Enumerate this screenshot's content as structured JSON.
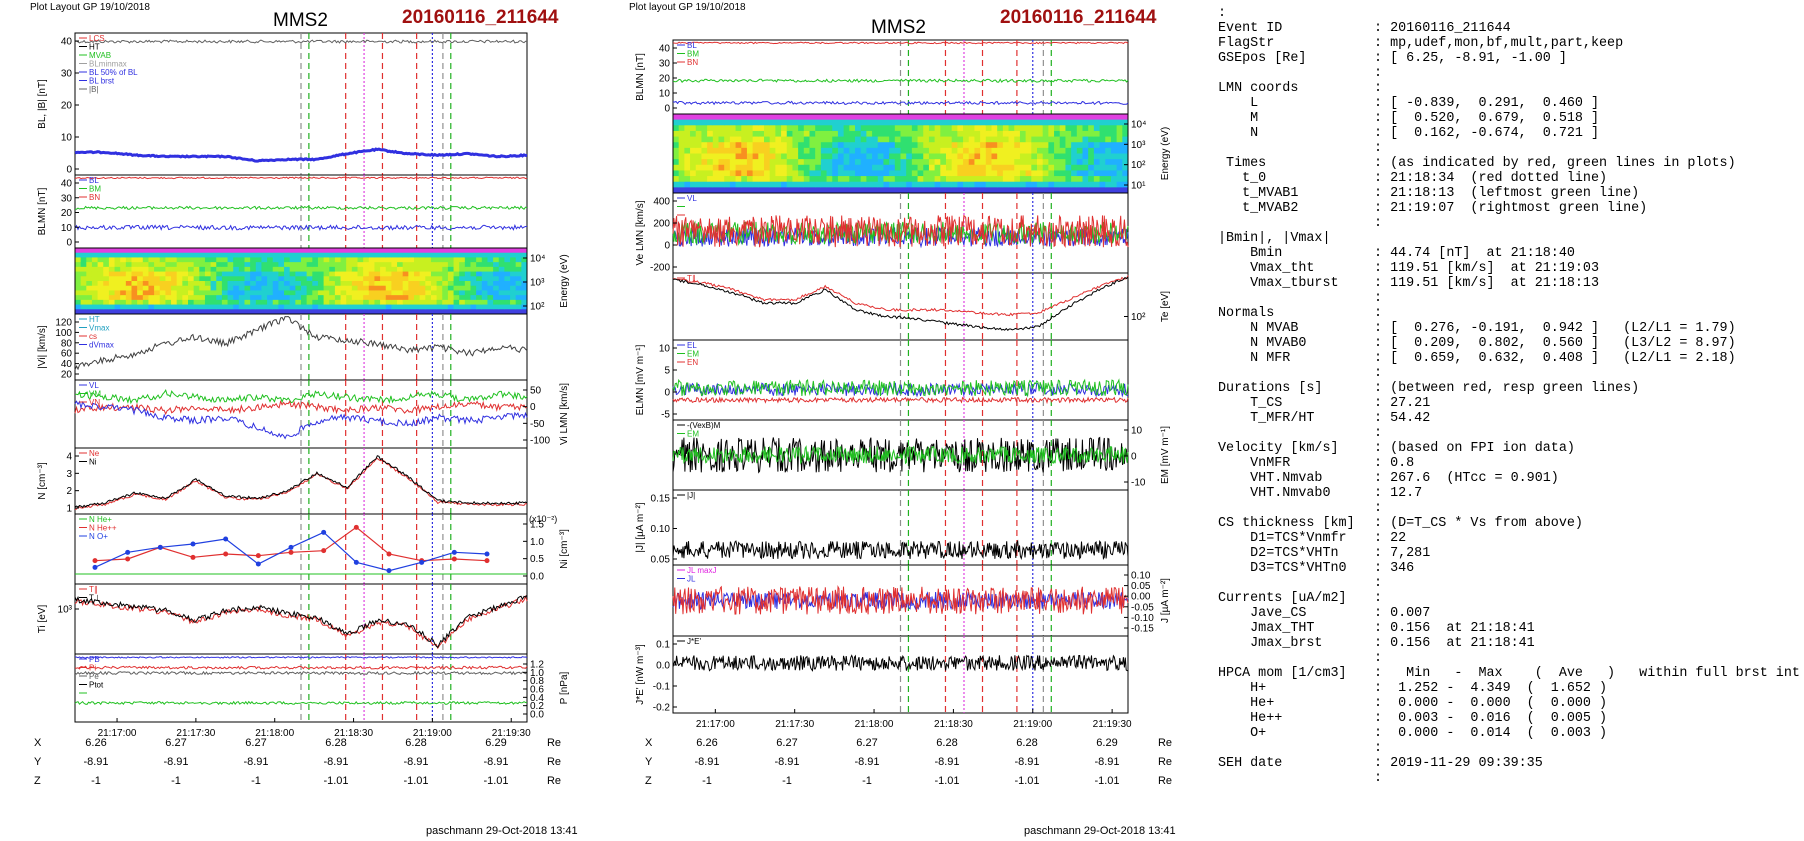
{
  "left": {
    "header": "Plot Layout GP 19/10/2018",
    "title": "MMS2",
    "event": "20160116_211644",
    "credit": "paschmann 29-Oct-2018 13:41",
    "time_ticks": [
      "21:17:00",
      "21:17:30",
      "21:18:00",
      "21:18:30",
      "21:19:00",
      "21:19:30"
    ],
    "pos_rows": [
      {
        "label": "X",
        "values": [
          "6.26",
          "6.27",
          "6.27",
          "6.28",
          "6.28",
          "6.29"
        ],
        "unit": "Re"
      },
      {
        "label": "Y",
        "values": [
          "-8.91",
          "-8.91",
          "-8.91",
          "-8.91",
          "-8.91",
          "-8.91"
        ],
        "unit": "Re"
      },
      {
        "label": "Z",
        "values": [
          "-1",
          "-1",
          "-1",
          "-1.01",
          "-1.01",
          "-1.01"
        ],
        "unit": "Re"
      }
    ],
    "panels": [
      {
        "ylabel": "B_L, |B| [nT]",
        "ticks": [
          "40",
          "30",
          "20",
          "10",
          "0"
        ],
        "legend": [
          {
            "t": "L_CS",
            "c": "#e03030"
          },
          {
            "t": "HT",
            "c": "#000000"
          },
          {
            "t": "MVAB",
            "c": "#20c020"
          },
          {
            "t": "BLminmax",
            "c": "#a0a0a0"
          },
          {
            "t": "BL 50% of BL",
            "c": "#3030e0"
          },
          {
            "t": "BL brst",
            "c": "#3030e0"
          },
          {
            "t": "|B|",
            "c": "#606060"
          }
        ]
      },
      {
        "ylabel": "B_LMN [nT]",
        "ticks": [
          "40",
          "30",
          "20",
          "10",
          "0"
        ],
        "legend": [
          {
            "t": "B_L",
            "c": "#3030e0"
          },
          {
            "t": "B_M",
            "c": "#20c020"
          },
          {
            "t": "B_N",
            "c": "#e03030"
          }
        ]
      },
      {
        "ylabel": "",
        "rlabel": "Energy (eV)",
        "rticks": [
          "10⁴",
          "10³",
          "10²"
        ]
      },
      {
        "ylabel": "|V_i| [km/s]",
        "ticks": [
          "120",
          "100",
          "80",
          "60",
          "40",
          "20"
        ],
        "legend": [
          {
            "t": "HT",
            "c": "#20a0c0"
          },
          {
            "t": "Vmax",
            "c": "#20a0c0"
          },
          {
            "t": "cs",
            "c": "#e03030"
          },
          {
            "t": "dVmax",
            "c": "#3030e0"
          }
        ]
      },
      {
        "ylabel": "",
        "rlabel": "V_i LMN [km/s]",
        "rticks": [
          "50",
          "0",
          "-50",
          "-100"
        ],
        "legend": [
          {
            "t": "V_L",
            "c": "#3030e0"
          },
          {
            "t": "V_M",
            "c": "#20c020"
          },
          {
            "t": "V_N",
            "c": "#e03030"
          }
        ]
      },
      {
        "ylabel": "N [cm⁻³]",
        "ticks": [
          "4",
          "3",
          "2",
          "1"
        ],
        "legend": [
          {
            "t": "Ne",
            "c": "#e03030"
          },
          {
            "t": "Ni",
            "c": "#000000"
          }
        ]
      },
      {
        "ylabel": "",
        "rlabel": "N_i [cm⁻³]",
        "rnote": "(x10⁻²)",
        "rticks": [
          "1.5",
          "1.0",
          "0.5",
          "0.0"
        ],
        "legend": [
          {
            "t": "N He+",
            "c": "#20c020"
          },
          {
            "t": "N He++",
            "c": "#e03030"
          },
          {
            "t": "N O+",
            "c": "#2040e0"
          }
        ]
      },
      {
        "ylabel": "T_i [eV]",
        "ticks": [
          "10³"
        ],
        "legend": [
          {
            "t": "T_∥",
            "c": "#e03030"
          },
          {
            "t": "T_⊥",
            "c": "#000000"
          }
        ]
      },
      {
        "ylabel": "",
        "rlabel": "P [nPa]",
        "rticks": [
          "1.2",
          "1.0",
          "0.8",
          "0.6",
          "0.4",
          "0.2",
          "0.0"
        ],
        "legend": [
          {
            "t": "P_B",
            "c": "#3030e0"
          },
          {
            "t": "P_i",
            "c": "#e03030"
          },
          {
            "t": "P_e",
            "c": "#606060"
          },
          {
            "t": "P_tot",
            "c": "#000000"
          },
          {
            "t": "",
            "c": "#20c020"
          }
        ]
      }
    ]
  },
  "right": {
    "header": "Plot layout GP 19/10/2018",
    "title": "MMS2",
    "event": "20160116_211644",
    "credit": "paschmann 29-Oct-2018 13:41",
    "time_ticks": [
      "21:17:00",
      "21:17:30",
      "21:18:00",
      "21:18:30",
      "21:19:00",
      "21:19:30"
    ],
    "pos_rows": [
      {
        "label": "X",
        "values": [
          "6.26",
          "6.27",
          "6.27",
          "6.28",
          "6.28",
          "6.29"
        ],
        "unit": "Re"
      },
      {
        "label": "Y",
        "values": [
          "-8.91",
          "-8.91",
          "-8.91",
          "-8.91",
          "-8.91",
          "-8.91"
        ],
        "unit": "Re"
      },
      {
        "label": "Z",
        "values": [
          "-1",
          "-1",
          "-1",
          "-1.01",
          "-1.01",
          "-1.01"
        ],
        "unit": "Re"
      }
    ],
    "panels": [
      {
        "ylabel": "B_LMN [nT]",
        "ticks": [
          "40",
          "30",
          "20",
          "10",
          "0"
        ],
        "legend": [
          {
            "t": "B_L",
            "c": "#3030e0"
          },
          {
            "t": "B_M",
            "c": "#20c020"
          },
          {
            "t": "B_N",
            "c": "#e03030"
          }
        ]
      },
      {
        "ylabel": "",
        "rlabel": "Energy (eV)",
        "rticks": [
          "10⁴",
          "10³",
          "10²",
          "10¹"
        ]
      },
      {
        "ylabel": "V_e LMN [km/s]",
        "ticks": [
          "400",
          "200",
          "0",
          "-200"
        ],
        "legend": [
          {
            "t": "V_L",
            "c": "#3030e0"
          },
          {
            "t": "",
            "c": "#20c020"
          },
          {
            "t": "",
            "c": "#e03030"
          }
        ]
      },
      {
        "ylabel": "",
        "rlabel": "T_e [eV]",
        "rticks": [
          "10²"
        ],
        "legend": [
          {
            "t": "T_∥",
            "c": "#e03030"
          }
        ]
      },
      {
        "ylabel": "E_LMN [mV m⁻¹]",
        "ticks": [
          "10",
          "5",
          "0",
          "-5"
        ],
        "legend": [
          {
            "t": "E_L",
            "c": "#3030e0"
          },
          {
            "t": "E_M",
            "c": "#20c020"
          },
          {
            "t": "E_N",
            "c": "#e03030"
          }
        ]
      },
      {
        "ylabel": "",
        "rlabel": "E_M [mV m⁻¹]",
        "rticks": [
          "10",
          "0",
          "-10"
        ],
        "legend": [
          {
            "t": "-(VexB)_M",
            "c": "#000000"
          },
          {
            "t": "E_M",
            "c": "#20c020"
          }
        ]
      },
      {
        "ylabel": "|J| [µA m⁻²]",
        "ticks": [
          "0.15",
          "0.10",
          "0.05"
        ],
        "legend": [
          {
            "t": "|J|",
            "c": "#000000"
          }
        ]
      },
      {
        "ylabel": "",
        "rlabel": "J [µA m⁻²]",
        "rticks": [
          "0.10",
          "0.05",
          "0.00",
          "-0.05",
          "-0.10",
          "-0.15"
        ],
        "legend": [
          {
            "t": "J_L maxJ",
            "c": "#e020e0"
          },
          {
            "t": "J_L",
            "c": "#3030e0"
          }
        ]
      },
      {
        "ylabel": "J*E' [nW m⁻³]",
        "ticks": [
          "0.1",
          "0.0",
          "-0.1",
          "-0.2"
        ],
        "legend": [
          {
            "t": "J*E'",
            "c": "#000000"
          }
        ]
      }
    ]
  },
  "info_lines": [
    [
      ":",
      ""
    ],
    [
      "Event ID",
      ": 20160116_211644"
    ],
    [
      "FlagStr",
      ": mp,udef,mon,bf,mult,part,keep"
    ],
    [
      "GSEpos [Re]",
      ": [ 6.25, -8.91, -1.00 ]"
    ],
    [
      "",
      ":"
    ],
    [
      "LMN coords",
      ":"
    ],
    [
      "    L",
      ": [ -0.839,  0.291,  0.460 ]"
    ],
    [
      "    M",
      ": [  0.520,  0.679,  0.518 ]"
    ],
    [
      "    N",
      ": [  0.162, -0.674,  0.721 ]"
    ],
    [
      "",
      ":"
    ],
    [
      " Times",
      ": (as indicated by red, green lines in plots)"
    ],
    [
      "   t_0",
      ": 21:18:34  (red dotted line)"
    ],
    [
      "   t_MVAB1",
      ": 21:18:13  (leftmost green line)"
    ],
    [
      "   t_MVAB2",
      ": 21:19:07  (rightmost green line)"
    ],
    [
      "",
      ":"
    ],
    [
      "|Bmin|, |Vmax|",
      ""
    ],
    [
      "    Bmin",
      ": 44.74 [nT]  at 21:18:40"
    ],
    [
      "    Vmax_tht",
      ": 119.51 [km/s]  at 21:19:03"
    ],
    [
      "    Vmax_tburst",
      ": 119.51 [km/s]  at 21:18:13"
    ],
    [
      "",
      ":"
    ],
    [
      "Normals",
      ":"
    ],
    [
      "    N MVAB",
      ": [  0.276, -0.191,  0.942 ]   (L2/L1 = 1.79)"
    ],
    [
      "    N MVAB0",
      ": [  0.209,  0.802,  0.560 ]   (L3/L2 = 8.97)"
    ],
    [
      "    N MFR",
      ": [  0.659,  0.632,  0.408 ]   (L2/L1 = 2.18)"
    ],
    [
      "",
      ":"
    ],
    [
      "Durations [s]",
      ": (between red, resp green lines)"
    ],
    [
      "    T_CS",
      ": 27.21"
    ],
    [
      "    T_MFR/HT",
      ": 54.42"
    ],
    [
      "",
      ":"
    ],
    [
      "Velocity [km/s]",
      ": (based on FPI ion data)"
    ],
    [
      "    VnMFR",
      ": 0.8"
    ],
    [
      "    VHT.Nmvab",
      ": 267.6  (HTcc = 0.901)"
    ],
    [
      "    VHT.Nmvab0",
      ": 12.7"
    ],
    [
      "",
      ":"
    ],
    [
      "CS thickness [km]",
      ": (D=T_CS * Vs from above)"
    ],
    [
      "    D1=TCS*Vnmfr",
      ": 22"
    ],
    [
      "    D2=TCS*VHTn",
      ": 7,281"
    ],
    [
      "    D3=TCS*VHTn0",
      ": 346"
    ],
    [
      "",
      ":"
    ],
    [
      "Currents [uA/m2]",
      ":"
    ],
    [
      "    Jave_CS",
      ": 0.007"
    ],
    [
      "    Jmax_THT",
      ": 0.156  at 21:18:41"
    ],
    [
      "    Jmax_brst",
      ": 0.156  at 21:18:41"
    ],
    [
      "",
      ":"
    ],
    [
      "HPCA mom [1/cm3]",
      ":   Min   -  Max    (  Ave   )   within full brst int"
    ],
    [
      "    H+",
      ":  1.252 -  4.349  (  1.652 )"
    ],
    [
      "    He+",
      ":  0.000 -  0.000  (  0.000 )"
    ],
    [
      "    He++",
      ":  0.003 -  0.016  (  0.005 )"
    ],
    [
      "    O+",
      ":  0.000 -  0.014  (  0.003 )"
    ],
    [
      "",
      ":"
    ],
    [
      "SEH date",
      ": 2019-11-29 09:39:35"
    ],
    [
      "",
      ":"
    ]
  ],
  "chart_data": [
    {
      "type": "line",
      "title": "MMS2 20160116_211644",
      "x_range": [
        "21:16:44",
        "21:19:36"
      ],
      "markers": [
        {
          "time": "21:18:10",
          "color": "#909090",
          "style": "dashed"
        },
        {
          "time": "21:18:13",
          "color": "#20b020",
          "style": "dashed",
          "label": "t_MVAB1"
        },
        {
          "time": "21:18:27",
          "color": "#e03030",
          "style": "dashed"
        },
        {
          "time": "21:18:34",
          "color": "#e040e0",
          "style": "dotted",
          "label": "t_0"
        },
        {
          "time": "21:18:41",
          "color": "#e03030",
          "style": "dashed"
        },
        {
          "time": "21:18:54",
          "color": "#e03030",
          "style": "dashed"
        },
        {
          "time": "21:19:00",
          "color": "#3030e0",
          "style": "dotted"
        },
        {
          "time": "21:19:04",
          "color": "#909090",
          "style": "dashed"
        },
        {
          "time": "21:19:07",
          "color": "#20b020",
          "style": "dashed",
          "label": "t_MVAB2"
        }
      ],
      "series": [
        {
          "name": "|B|",
          "values": [
            45,
            45,
            44,
            44,
            45,
            45,
            44,
            44,
            44,
            44,
            45,
            45,
            45,
            44,
            44,
            45
          ]
        },
        {
          "name": "BL brst",
          "values": [
            7,
            7,
            6,
            5,
            5,
            5,
            4,
            3,
            3,
            4,
            5,
            7,
            6,
            7,
            6,
            5
          ]
        },
        {
          "name": "|Vi|",
          "values": [
            55,
            60,
            70,
            85,
            90,
            80,
            100,
            115,
            85,
            80,
            75,
            70,
            65,
            62,
            60,
            60
          ]
        },
        {
          "name": "Ne",
          "values": [
            1.1,
            1.3,
            1.7,
            1.5,
            2.4,
            1.6,
            1.5,
            1.9,
            3.0,
            2.2,
            4.2,
            2.8,
            1.6,
            1.5,
            1.4,
            1.5
          ]
        },
        {
          "name": "Ni",
          "values": [
            1.2,
            1.4,
            1.8,
            1.6,
            2.5,
            1.7,
            1.6,
            2.0,
            3.1,
            2.3,
            4.3,
            2.9,
            1.7,
            1.6,
            1.5,
            1.6
          ]
        }
      ]
    },
    {
      "type": "scatter",
      "title": "N He+ / He++ / O+",
      "ylim": [
        0,
        1.5
      ],
      "series": [
        {
          "name": "N He++",
          "values": [
            0.4,
            0.45,
            0.8,
            0.5,
            0.6,
            0.55,
            0.65,
            0.7,
            1.4,
            0.6,
            0.4,
            0.45,
            0.4
          ]
        },
        {
          "name": "N O+",
          "values": [
            0.2,
            0.65,
            0.8,
            0.9,
            1.05,
            0.3,
            0.8,
            1.25,
            0.35,
            0.1,
            0.35,
            0.65,
            0.6
          ]
        }
      ]
    }
  ]
}
